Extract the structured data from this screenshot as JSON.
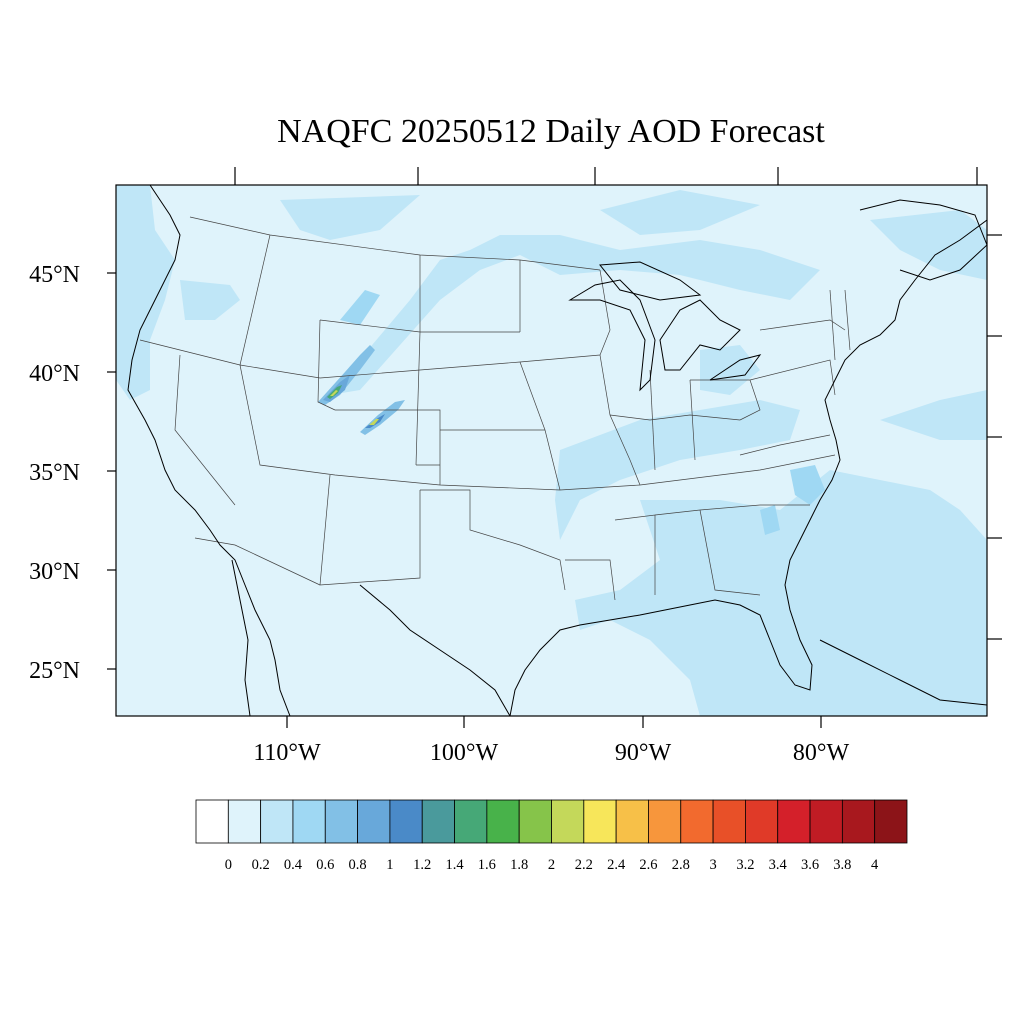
{
  "title": "NAQFC 20250512 Daily AOD Forecast",
  "latitude_labels": [
    "45°N",
    "40°N",
    "35°N",
    "30°N",
    "25°N"
  ],
  "longitude_labels": [
    "110°W",
    "100°W",
    "90°W",
    "80°W"
  ],
  "colorbar": {
    "labels": [
      "0",
      "0.2",
      "0.4",
      "0.6",
      "0.8",
      "1",
      "1.2",
      "1.4",
      "1.6",
      "1.8",
      "2",
      "2.2",
      "2.4",
      "2.6",
      "2.8",
      "3",
      "3.2",
      "3.4",
      "3.6",
      "3.8",
      "4"
    ],
    "colors": [
      "#ffffff",
      "#dff3fb",
      "#bfe6f7",
      "#9fd8f3",
      "#82c0e6",
      "#68a8da",
      "#4a8ac8",
      "#4a9a9c",
      "#46a877",
      "#48b24a",
      "#86c44a",
      "#c4d85a",
      "#f7e65a",
      "#f7c048",
      "#f7963c",
      "#f26a2e",
      "#e85028",
      "#e03a28",
      "#d4202a",
      "#c01c24",
      "#a8181e",
      "#8c1418"
    ]
  },
  "colors": {
    "ocean_background": "#dcf0f9",
    "light_aod": "#dff3fb",
    "medium_aod": "#bfe6f7",
    "state_lines": "#444444",
    "coastline": "#000000"
  }
}
